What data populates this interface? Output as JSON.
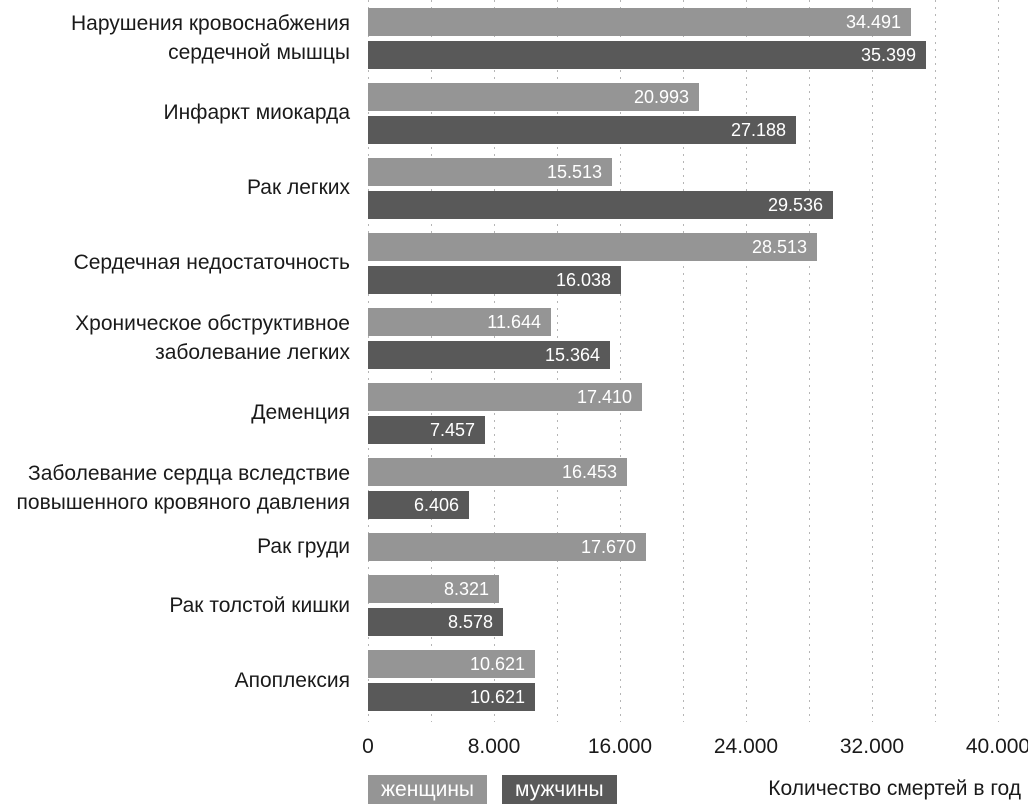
{
  "colors": {
    "background": "#ffffff",
    "women_bar": "#959595",
    "men_bar": "#595959",
    "value_label_text": "#ffffff",
    "grid_dots": "#b5b5b5",
    "text": "#1a1a1a"
  },
  "chart_data": {
    "type": "bar",
    "orientation": "horizontal",
    "title": "",
    "xlabel": "Количество смертей в год",
    "ylabel": "",
    "xlim": [
      0,
      40000
    ],
    "x_ticks": [
      "0",
      "8.000",
      "16.000",
      "24.000",
      "32.000",
      "40.000"
    ],
    "x_tick_values": [
      0,
      8000,
      16000,
      24000,
      32000,
      40000
    ],
    "grid": "dotted vertical minor gridlines every 4000",
    "legend_position": "bottom-left",
    "categories": [
      "Нарушения кровоснабжения сердечной мышцы",
      "Инфаркт миокарда",
      "Рак легких",
      "Сердечная недостаточность",
      "Хроническое обструктивное заболевание легких",
      "Деменция",
      "Заболевание сердца вследствие повышенного кровяного давления",
      "Рак груди",
      "Рак толстой кишки",
      "Апоплексия"
    ],
    "category_lines": [
      [
        "Нарушения кровоснабжения",
        "сердечной мышцы"
      ],
      [
        "Инфаркт миокарда"
      ],
      [
        "Рак легких"
      ],
      [
        "Сердечная недостаточность"
      ],
      [
        "Хроническое обструктивное",
        "заболевание легких"
      ],
      [
        "Деменция"
      ],
      [
        "Заболевание сердца вследствие",
        "повышенного кровяного давления"
      ],
      [
        "Рак груди"
      ],
      [
        "Рак толстой кишки"
      ],
      [
        "Апоплексия"
      ]
    ],
    "series": [
      {
        "name": "женщины",
        "key": "women",
        "color": "#959595",
        "values": [
          34491,
          20993,
          15513,
          28513,
          11644,
          17410,
          16453,
          17670,
          8321,
          10621
        ],
        "labels": [
          "34.491",
          "20.993",
          "15.513",
          "28.513",
          "11.644",
          "17.410",
          "16.453",
          "17.670",
          "8.321",
          "10.621"
        ]
      },
      {
        "name": "мужчины",
        "key": "men",
        "color": "#595959",
        "values": [
          35399,
          27188,
          29536,
          16038,
          15364,
          7457,
          6406,
          null,
          8578,
          10621
        ],
        "labels": [
          "35.399",
          "27.188",
          "29.536",
          "16.038",
          "15.364",
          "7.457",
          "6.406",
          null,
          "8.578",
          "10.621"
        ]
      }
    ]
  }
}
